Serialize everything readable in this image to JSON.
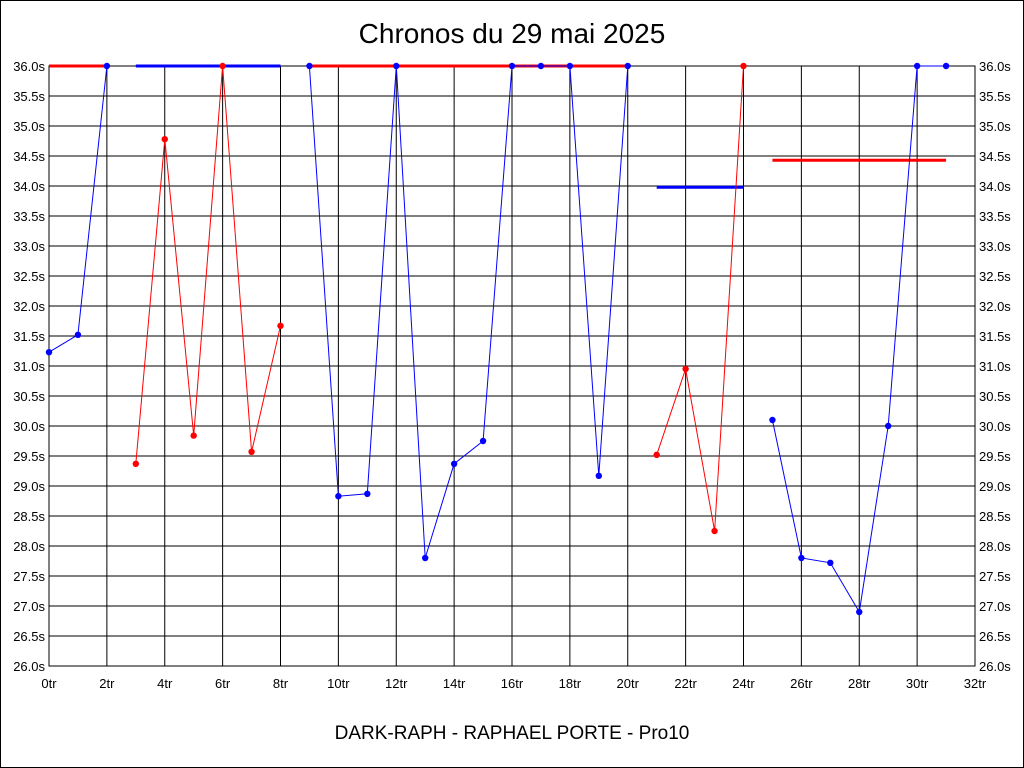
{
  "chart_data": {
    "type": "line",
    "title": "Chronos du 29 mai 2025",
    "footer": "DARK-RAPH - RAPHAEL PORTE - Pro10",
    "xlim": [
      0,
      32
    ],
    "ylim": [
      26.0,
      36.0
    ],
    "x_ticks": [
      0,
      2,
      4,
      6,
      8,
      10,
      12,
      14,
      16,
      18,
      20,
      22,
      24,
      26,
      28,
      30,
      32
    ],
    "x_tick_labels": [
      "0tr",
      "2tr",
      "4tr",
      "6tr",
      "8tr",
      "10tr",
      "12tr",
      "14tr",
      "16tr",
      "18tr",
      "20tr",
      "22tr",
      "24tr",
      "26tr",
      "28tr",
      "30tr",
      "32tr"
    ],
    "y_ticks": [
      26.0,
      26.5,
      27.0,
      27.5,
      28.0,
      28.5,
      29.0,
      29.5,
      30.0,
      30.5,
      31.0,
      31.5,
      32.0,
      32.5,
      33.0,
      33.5,
      34.0,
      34.5,
      35.0,
      35.5,
      36.0
    ],
    "y_tick_labels": [
      "26.0s",
      "26.5s",
      "27.0s",
      "27.5s",
      "28.0s",
      "28.5s",
      "29.0s",
      "29.5s",
      "30.0s",
      "30.5s",
      "31.0s",
      "31.5s",
      "32.0s",
      "32.5s",
      "33.0s",
      "33.5s",
      "34.0s",
      "34.5s",
      "35.0s",
      "35.5s",
      "36.0s"
    ],
    "grid": true,
    "colors": {
      "red": "#ff0000",
      "blue": "#0000ff"
    },
    "series": [
      {
        "color": "#0000ff",
        "points": [
          [
            0,
            31.23
          ],
          [
            1,
            31.52
          ],
          [
            2,
            36.0
          ]
        ]
      },
      {
        "color": "#ff0000",
        "points": [
          [
            3,
            29.37
          ],
          [
            4,
            34.78
          ],
          [
            5,
            29.84
          ],
          [
            6,
            36.0
          ],
          [
            7,
            29.57
          ],
          [
            8,
            31.67
          ]
        ]
      },
      {
        "color": "#0000ff",
        "points": [
          [
            9,
            36.0
          ],
          [
            10,
            28.83
          ],
          [
            11,
            28.87
          ],
          [
            12,
            36.0
          ],
          [
            13,
            27.8
          ],
          [
            14,
            29.37
          ],
          [
            15,
            29.75
          ],
          [
            16,
            36.0
          ],
          [
            17,
            36.0
          ],
          [
            18,
            36.0
          ],
          [
            19,
            29.17
          ],
          [
            20,
            36.0
          ]
        ]
      },
      {
        "color": "#ff0000",
        "points": [
          [
            21,
            29.52
          ],
          [
            22,
            30.95
          ],
          [
            23,
            28.25
          ],
          [
            24,
            36.0
          ]
        ]
      },
      {
        "color": "#0000ff",
        "points": [
          [
            25,
            30.1
          ],
          [
            26,
            27.8
          ],
          [
            27,
            27.72
          ],
          [
            28,
            26.9
          ],
          [
            29,
            30.0
          ],
          [
            30,
            36.0
          ],
          [
            31,
            36.0
          ]
        ]
      }
    ],
    "average_lines": [
      {
        "color": "#ff0000",
        "x": [
          0,
          2
        ],
        "y": 36.0
      },
      {
        "color": "#0000ff",
        "x": [
          3,
          8
        ],
        "y": 36.0
      },
      {
        "color": "#ff0000",
        "x": [
          9,
          20
        ],
        "y": 36.0
      },
      {
        "color": "#0000ff",
        "x": [
          21,
          24
        ],
        "y": 33.98
      },
      {
        "color": "#ff0000",
        "x": [
          25,
          31
        ],
        "y": 34.43
      }
    ]
  }
}
